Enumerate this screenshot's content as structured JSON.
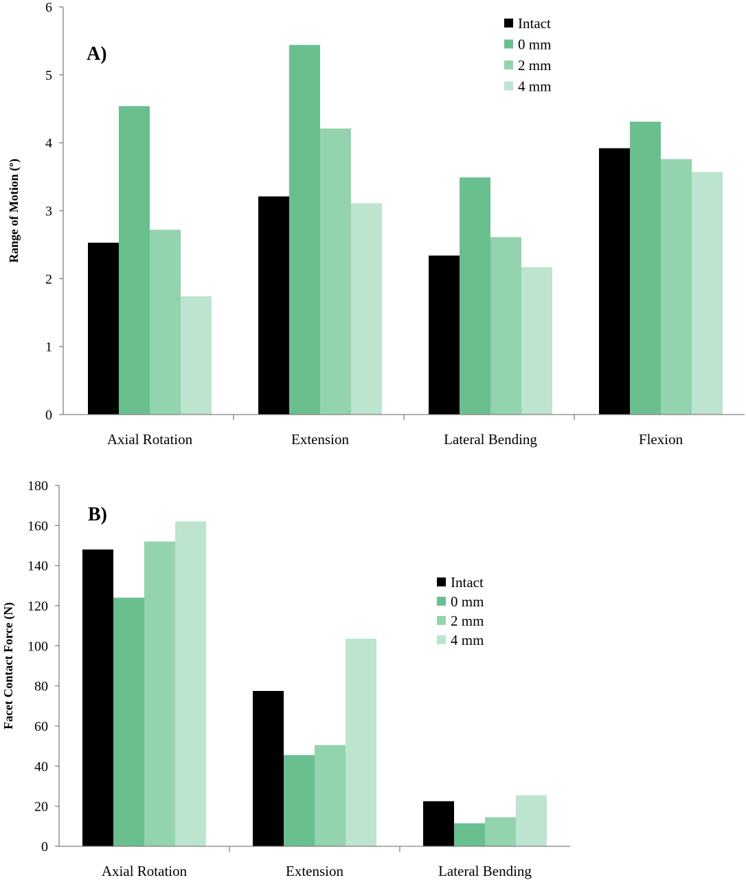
{
  "chart_data": [
    {
      "type": "bar",
      "panel_label": "A)",
      "title": "",
      "xlabel": "",
      "ylabel": "Range of Motion (º)",
      "ylim": [
        0,
        6
      ],
      "yticks": [
        "0",
        "1",
        "2",
        "3",
        "4",
        "5",
        "6"
      ],
      "grid": false,
      "legend_position": "top-right",
      "categories": [
        "Axial Rotation",
        "Extension",
        "Lateral Bending",
        "Flexion"
      ],
      "series": [
        {
          "name": "Intact",
          "color": "#000000",
          "values": [
            2.53,
            3.21,
            2.34,
            3.92
          ]
        },
        {
          "name": "0 mm",
          "color": "#6abf8f",
          "values": [
            4.54,
            5.44,
            3.49,
            4.31
          ]
        },
        {
          "name": "2 mm",
          "color": "#93d3ad",
          "values": [
            2.72,
            4.21,
            2.61,
            3.76
          ]
        },
        {
          "name": "4 mm",
          "color": "#bce4cf",
          "values": [
            1.74,
            3.11,
            2.17,
            3.57
          ]
        }
      ]
    },
    {
      "type": "bar",
      "panel_label": "B)",
      "title": "",
      "xlabel": "",
      "ylabel": "Facet Contact Force (N)",
      "ylim": [
        0,
        180
      ],
      "yticks": [
        "0",
        "20",
        "40",
        "60",
        "80",
        "100",
        "120",
        "140",
        "160",
        "180"
      ],
      "grid": false,
      "legend_position": "center-right",
      "categories": [
        "Axial Rotation",
        "Extension",
        "Lateral Bending"
      ],
      "series": [
        {
          "name": "Intact",
          "color": "#000000",
          "values": [
            148,
            77.5,
            22.5
          ]
        },
        {
          "name": "0 mm",
          "color": "#6abf8f",
          "values": [
            124,
            45.5,
            11.5
          ]
        },
        {
          "name": "2 mm",
          "color": "#93d3ad",
          "values": [
            152,
            50.5,
            14.5
          ]
        },
        {
          "name": "4 mm",
          "color": "#bce4cf",
          "values": [
            162,
            103.5,
            25.5
          ]
        }
      ]
    }
  ]
}
